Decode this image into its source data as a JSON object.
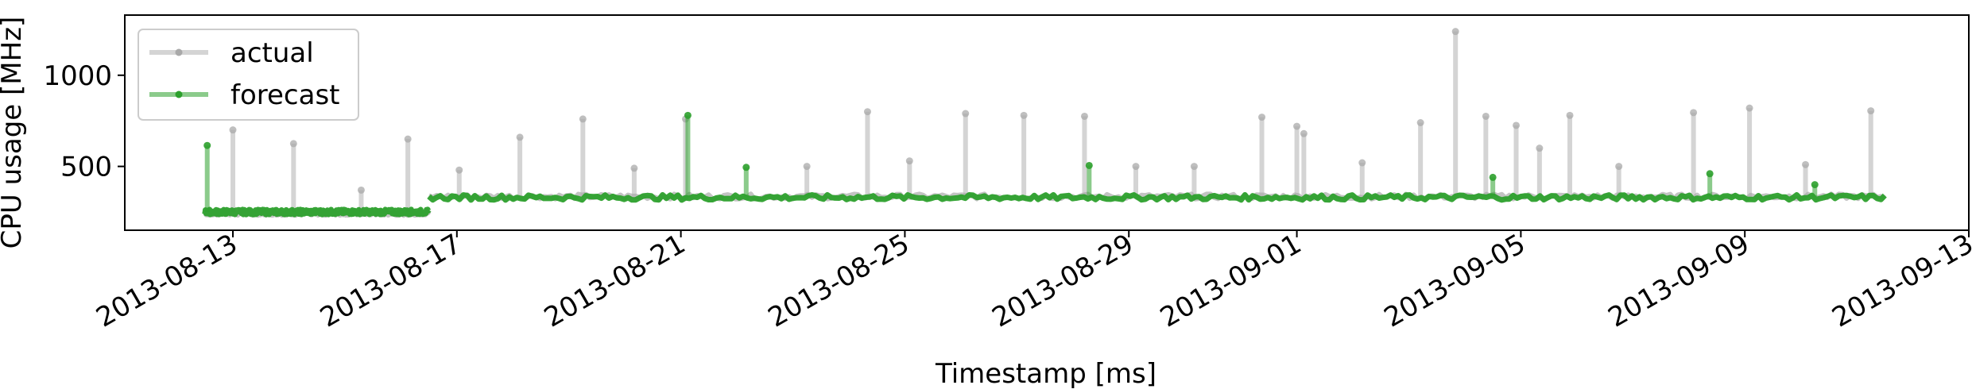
{
  "chart_data": {
    "type": "line",
    "xlabel": "Timestamp [ms]",
    "ylabel": "CPU usage [MHz]",
    "xlim": [
      "2013-08-11",
      "2013-09-13"
    ],
    "ylim": [
      150,
      1330
    ],
    "grid": false,
    "legend_position": "top-left",
    "x_ticks": [
      "2013-08-13",
      "2013-08-17",
      "2013-08-21",
      "2013-08-25",
      "2013-08-29",
      "2013-09-01",
      "2013-09-05",
      "2013-09-09",
      "2013-09-13"
    ],
    "y_ticks": [
      500,
      1000
    ],
    "series": [
      {
        "name": "actual",
        "color": "#a9a9a9",
        "segments": [
          {
            "start": "2013-08-12T12:00",
            "end": "2013-08-16T12:00",
            "base": 245
          },
          {
            "start": "2013-08-16T12:00",
            "end": "2013-09-11T12:00",
            "base": 335
          }
        ],
        "spikes": [
          {
            "x": "2013-08-13T00:00",
            "y": 700
          },
          {
            "x": "2013-08-14T02:00",
            "y": 625
          },
          {
            "x": "2013-08-15T07:00",
            "y": 370
          },
          {
            "x": "2013-08-16T03:00",
            "y": 650
          },
          {
            "x": "2013-08-17T01:00",
            "y": 480
          },
          {
            "x": "2013-08-18T03:00",
            "y": 660
          },
          {
            "x": "2013-08-19T06:00",
            "y": 760
          },
          {
            "x": "2013-08-20T04:00",
            "y": 490
          },
          {
            "x": "2013-08-21T02:00",
            "y": 760
          },
          {
            "x": "2013-08-23T06:00",
            "y": 500
          },
          {
            "x": "2013-08-24T08:00",
            "y": 800
          },
          {
            "x": "2013-08-25T02:00",
            "y": 530
          },
          {
            "x": "2013-08-26T02:00",
            "y": 790
          },
          {
            "x": "2013-08-27T03:00",
            "y": 780
          },
          {
            "x": "2013-08-28T05:00",
            "y": 775
          },
          {
            "x": "2013-08-29T03:00",
            "y": 500
          },
          {
            "x": "2013-08-30T04:00",
            "y": 500
          },
          {
            "x": "2013-08-31T09:00",
            "y": 770
          },
          {
            "x": "2013-09-01T00:00",
            "y": 720
          },
          {
            "x": "2013-09-01T03:00",
            "y": 680
          },
          {
            "x": "2013-09-02T04:00",
            "y": 520
          },
          {
            "x": "2013-09-03T05:00",
            "y": 740
          },
          {
            "x": "2013-09-03T20:00",
            "y": 1240
          },
          {
            "x": "2013-09-04T09:00",
            "y": 775
          },
          {
            "x": "2013-09-04T22:00",
            "y": 725
          },
          {
            "x": "2013-09-05T08:00",
            "y": 600
          },
          {
            "x": "2013-09-05T21:00",
            "y": 780
          },
          {
            "x": "2013-09-06T18:00",
            "y": 500
          },
          {
            "x": "2013-09-08T02:00",
            "y": 795
          },
          {
            "x": "2013-09-09T02:00",
            "y": 820
          },
          {
            "x": "2013-09-10T02:00",
            "y": 510
          },
          {
            "x": "2013-09-11T06:00",
            "y": 805
          }
        ]
      },
      {
        "name": "forecast",
        "color": "#2ca02c",
        "segments": [
          {
            "start": "2013-08-12T12:00",
            "end": "2013-08-16T12:00",
            "base": 250
          },
          {
            "start": "2013-08-16T12:00",
            "end": "2013-09-11T12:00",
            "base": 330
          }
        ],
        "spikes": [
          {
            "x": "2013-08-12T13:00",
            "y": 615
          },
          {
            "x": "2013-08-21T03:00",
            "y": 780
          },
          {
            "x": "2013-08-22T04:00",
            "y": 495
          },
          {
            "x": "2013-08-28T07:00",
            "y": 505
          },
          {
            "x": "2013-09-04T12:00",
            "y": 440
          },
          {
            "x": "2013-09-08T09:00",
            "y": 460
          },
          {
            "x": "2013-09-10T06:00",
            "y": 400
          }
        ]
      }
    ]
  }
}
